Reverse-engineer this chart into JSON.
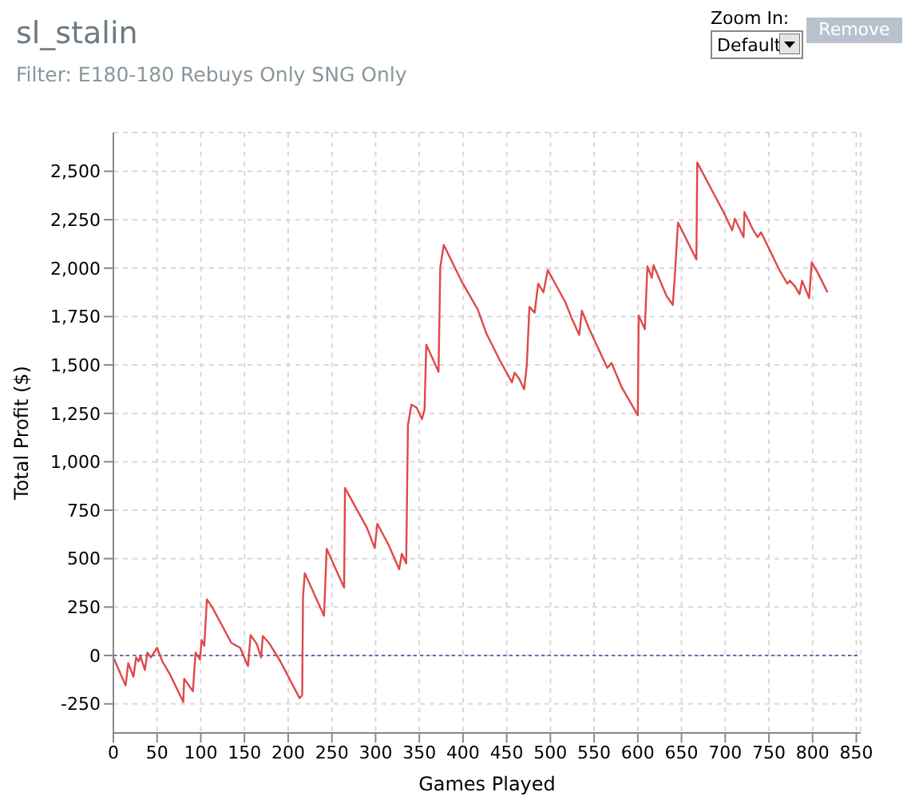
{
  "chart_data": {
    "type": "line",
    "title": "sl_stalin",
    "subtitle": "Filter: E180-180 Rebuys Only SNG Only",
    "xlabel": "Games Played",
    "ylabel": "Total Profit ($)",
    "annotations": [
      "Zoom In:",
      "Default",
      "Remove"
    ],
    "x": [
      0,
      14,
      17,
      23,
      26,
      29,
      31,
      36,
      39,
      43,
      50,
      56,
      65,
      80,
      81,
      91,
      94,
      99,
      101,
      104,
      107,
      113,
      135,
      145,
      154,
      157,
      164,
      169,
      171,
      178,
      191,
      213,
      216,
      217,
      219,
      241,
      244,
      264,
      265,
      290,
      299,
      302,
      315,
      327,
      330,
      335,
      337,
      341,
      347,
      353,
      356,
      358,
      372,
      374,
      378,
      398,
      417,
      427,
      442,
      456,
      459,
      464,
      470,
      473,
      476,
      482,
      486,
      492,
      497,
      517,
      524,
      533,
      536,
      544,
      565,
      570,
      581,
      600,
      601,
      608,
      611,
      616,
      618,
      633,
      640,
      642,
      646,
      667,
      668,
      685,
      698,
      708,
      711,
      721,
      722,
      731,
      737,
      741,
      762,
      771,
      774,
      780,
      785,
      788,
      796,
      799,
      806,
      817
    ],
    "series": [
      {
        "color": "#e04848",
        "values": [
          -10,
          -155,
          -40,
          -110,
          -10,
          -30,
          -5,
          -75,
          15,
          -10,
          40,
          -30,
          -100,
          -240,
          -120,
          -185,
          15,
          -20,
          80,
          50,
          290,
          250,
          65,
          40,
          -55,
          105,
          60,
          -10,
          100,
          65,
          -30,
          -220,
          -205,
          305,
          425,
          205,
          550,
          350,
          865,
          660,
          555,
          680,
          570,
          445,
          525,
          475,
          1190,
          1295,
          1280,
          1220,
          1270,
          1605,
          1465,
          2005,
          2120,
          1935,
          1785,
          1660,
          1525,
          1410,
          1460,
          1430,
          1375,
          1500,
          1800,
          1770,
          1920,
          1875,
          1990,
          1825,
          1745,
          1655,
          1780,
          1690,
          1485,
          1510,
          1390,
          1240,
          1755,
          1685,
          2010,
          1950,
          2015,
          1855,
          1810,
          1935,
          2235,
          2045,
          2545,
          2400,
          2290,
          2195,
          2255,
          2160,
          2290,
          2205,
          2160,
          2185,
          1990,
          1920,
          1935,
          1905,
          1865,
          1935,
          1845,
          2030,
          1975,
          1875
        ]
      }
    ],
    "xlim": [
      0,
      855
    ],
    "xticks": [
      0,
      50,
      100,
      150,
      200,
      250,
      300,
      350,
      400,
      450,
      500,
      550,
      600,
      650,
      700,
      750,
      800,
      850
    ],
    "ylim": [
      -400,
      2700
    ],
    "yticks": [
      {
        "value": -250,
        "label": "-250"
      },
      {
        "value": 0,
        "label": "0"
      },
      {
        "value": 250,
        "label": "250"
      },
      {
        "value": 500,
        "label": "500"
      },
      {
        "value": 750,
        "label": "750"
      },
      {
        "value": 1000,
        "label": "1,000"
      },
      {
        "value": 1250,
        "label": "1,250"
      },
      {
        "value": 1500,
        "label": "1,500"
      },
      {
        "value": 1750,
        "label": "1,750"
      },
      {
        "value": 2000,
        "label": "2,000"
      },
      {
        "value": 2250,
        "label": "2,250"
      },
      {
        "value": 2500,
        "label": "2,500"
      }
    ],
    "ref_lines": [
      {
        "axis": "y",
        "value": 0,
        "color": "#6a6aa8",
        "line_style": "dotted"
      }
    ],
    "grid": true,
    "marker": "none",
    "line_style": "solid"
  }
}
